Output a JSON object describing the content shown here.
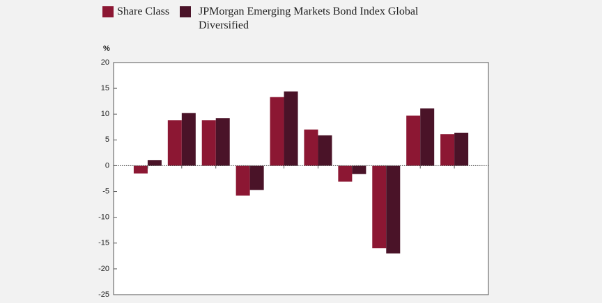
{
  "chart_data": {
    "type": "bar",
    "y_label": "%",
    "categories": [
      null,
      null,
      null,
      null,
      null,
      null,
      null,
      null,
      null,
      null
    ],
    "series": [
      {
        "name": "Share Class",
        "color": "#8c1733",
        "values": [
          -1.5,
          8.8,
          8.8,
          -5.8,
          13.3,
          7.0,
          -3.1,
          -16.0,
          9.7,
          6.1
        ]
      },
      {
        "name": "JPMorgan Emerging Markets Bond Index Global Diversified",
        "color": "#4a1328",
        "values": [
          1.1,
          10.2,
          9.2,
          -4.7,
          14.4,
          5.9,
          -1.6,
          -17.0,
          11.1,
          6.4
        ]
      }
    ],
    "ylim": [
      -25,
      20
    ],
    "yticks": [
      -25,
      -20,
      -15,
      -10,
      -5,
      0,
      5,
      10,
      15,
      20
    ],
    "grid": false,
    "legend": "top"
  }
}
